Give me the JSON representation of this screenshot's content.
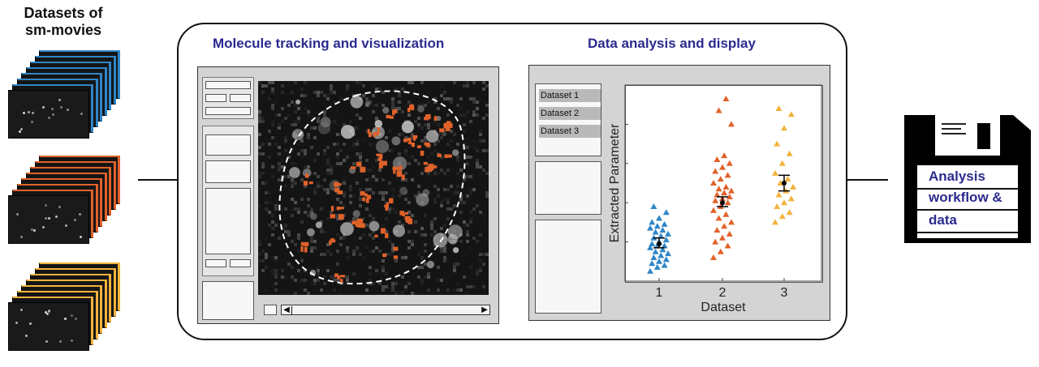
{
  "left": {
    "title_line1": "Datasets of",
    "title_line2": "sm-movies",
    "stacks": [
      {
        "color": "#2f86c8"
      },
      {
        "color": "#e0622a"
      },
      {
        "color": "#f2b33d"
      }
    ]
  },
  "tracking": {
    "title": "Molecule tracking and visualization",
    "track_color": "#e0622a"
  },
  "analysis": {
    "title": "Data analysis and display",
    "datasets": [
      "Dataset 1",
      "Dataset 2",
      "Dataset 3"
    ]
  },
  "chart_data": {
    "type": "scatter",
    "ylabel": "Extracted Parameter",
    "xlabel": "Dataset",
    "categories": [
      "1",
      "2",
      "3"
    ],
    "series_colors": [
      "#2f86c8",
      "#e0622a",
      "#f2b33d"
    ],
    "marker": "triangle",
    "grid": false,
    "groups": [
      {
        "category": "1",
        "values": [
          0.05,
          0.07,
          0.08,
          0.09,
          0.1,
          0.11,
          0.12,
          0.13,
          0.14,
          0.15,
          0.16,
          0.17,
          0.18,
          0.18,
          0.19,
          0.2,
          0.21,
          0.22,
          0.23,
          0.24,
          0.25,
          0.26,
          0.27,
          0.28,
          0.29,
          0.3,
          0.32,
          0.35,
          0.38
        ],
        "mean": 0.19,
        "err": [
          0.17,
          0.22
        ]
      },
      {
        "category": "2",
        "values": [
          0.12,
          0.15,
          0.18,
          0.2,
          0.22,
          0.24,
          0.26,
          0.28,
          0.3,
          0.32,
          0.34,
          0.36,
          0.38,
          0.4,
          0.41,
          0.42,
          0.43,
          0.44,
          0.45,
          0.46,
          0.47,
          0.48,
          0.5,
          0.52,
          0.54,
          0.56,
          0.58,
          0.6,
          0.62,
          0.64,
          0.8,
          0.87,
          0.93
        ],
        "mean": 0.4,
        "err": [
          0.38,
          0.43
        ]
      },
      {
        "category": "3",
        "values": [
          0.3,
          0.33,
          0.35,
          0.38,
          0.4,
          0.42,
          0.44,
          0.46,
          0.48,
          0.5,
          0.52,
          0.55,
          0.6,
          0.65,
          0.7,
          0.78,
          0.85,
          0.88
        ],
        "mean": 0.5,
        "err": [
          0.46,
          0.54
        ]
      }
    ]
  },
  "output": {
    "label_line1": "Analysis",
    "label_line2": "workflow &",
    "label_line3": "data"
  }
}
